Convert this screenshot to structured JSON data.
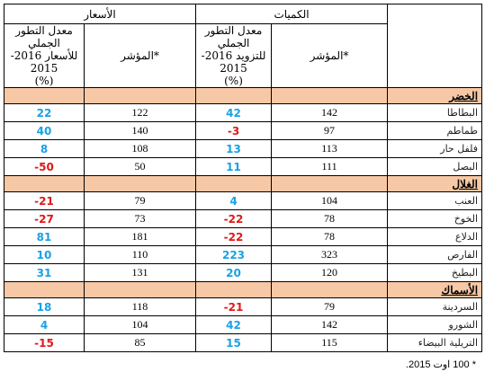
{
  "headers": {
    "quantities": "الكميات",
    "prices": "الأسعار",
    "index_q": "المؤشر*",
    "rate_q_line1": "معدل التطور الجملي",
    "rate_q_line2": "للتزويد 2016-2015",
    "rate_q_line3": "(%)",
    "index_p": "المؤشر*",
    "rate_p_line1": "معدل التطور الجملي",
    "rate_p_line2": "للأسعار 2016-2015",
    "rate_p_line3": "(%)"
  },
  "colors": {
    "positive": "#19a1e6",
    "negative": "#e01818",
    "section_bg": "#f7c8a6"
  },
  "sections": [
    {
      "name": "الخضر",
      "rows": [
        {
          "product": "البطاطا",
          "q_index": "142",
          "q_rate": "42",
          "p_index": "122",
          "p_rate": "22"
        },
        {
          "product": "طماطم",
          "q_index": "97",
          "q_rate": "-3",
          "p_index": "140",
          "p_rate": "40"
        },
        {
          "product": "فلفل حار",
          "q_index": "113",
          "q_rate": "13",
          "p_index": "108",
          "p_rate": "8"
        },
        {
          "product": "البصل",
          "q_index": "111",
          "q_rate": "11",
          "p_index": "50",
          "p_rate": "-50"
        }
      ]
    },
    {
      "name": "الغلال",
      "rows": [
        {
          "product": "العنب",
          "q_index": "104",
          "q_rate": "4",
          "p_index": "79",
          "p_rate": "-21"
        },
        {
          "product": "الخوخ",
          "q_index": "78",
          "q_rate": "-22",
          "p_index": "73",
          "p_rate": "-27"
        },
        {
          "product": "الدلاع",
          "q_index": "78",
          "q_rate": "-22",
          "p_index": "181",
          "p_rate": "81"
        },
        {
          "product": "الفارص",
          "q_index": "323",
          "q_rate": "223",
          "p_index": "110",
          "p_rate": "10"
        },
        {
          "product": "البطيخ",
          "q_index": "120",
          "q_rate": "20",
          "p_index": "131",
          "p_rate": "31"
        }
      ]
    },
    {
      "name": "الأسماك",
      "rows": [
        {
          "product": "السردينة",
          "q_index": "79",
          "q_rate": "-21",
          "p_index": "118",
          "p_rate": "18"
        },
        {
          "product": "الشورو",
          "q_index": "142",
          "q_rate": "42",
          "p_index": "104",
          "p_rate": "4"
        },
        {
          "product": "التريلية البيضاء",
          "q_index": "115",
          "q_rate": "15",
          "p_index": "85",
          "p_rate": "-15"
        }
      ]
    }
  ],
  "footnote": "* 100 اوت 2015."
}
